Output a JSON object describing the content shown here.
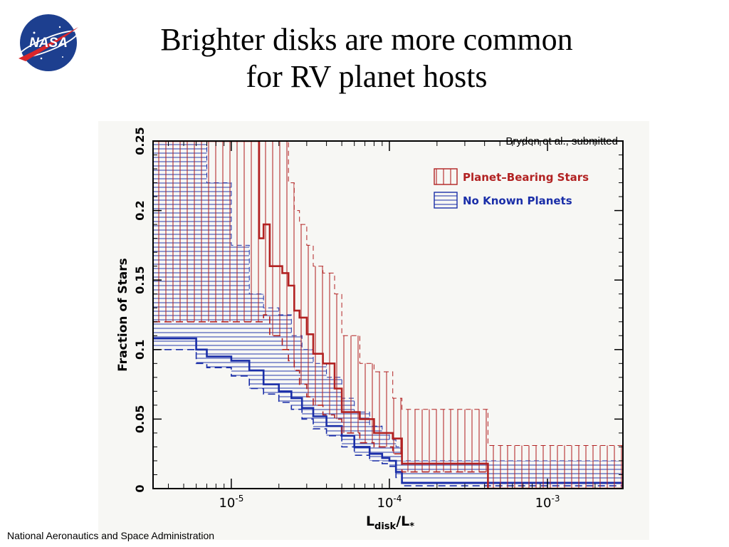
{
  "page": {
    "title_line1": "Brighter disks are more common",
    "title_line2": "for RV planet hosts",
    "footer": "National Aeronautics and Space Administration",
    "logo_text": "NASA"
  },
  "colors": {
    "planet": "#b22222",
    "noplanet": "#1a2ea8",
    "panel_bg": "#f7f7f4"
  },
  "chart_data": {
    "type": "line",
    "annotation": "Bryden et al., submitted",
    "ylabel": "Fraction of Stars",
    "xlabel_main": "L",
    "xlabel_sub1": "disk",
    "xlabel_sep": "/L",
    "xlabel_sub2": "*",
    "x_scale": "log",
    "xlim": [
      3.2e-06,
      0.003
    ],
    "ylim": [
      0,
      0.25
    ],
    "x_ticks": [
      {
        "value": 1e-05,
        "base": "10",
        "exp": "-5"
      },
      {
        "value": 0.0001,
        "base": "10",
        "exp": "-4"
      },
      {
        "value": 0.001,
        "base": "10",
        "exp": "-3"
      }
    ],
    "y_ticks": [
      {
        "value": 0,
        "label": "0"
      },
      {
        "value": 0.05,
        "label": "0.05"
      },
      {
        "value": 0.1,
        "label": "0.1"
      },
      {
        "value": 0.15,
        "label": "0.15"
      },
      {
        "value": 0.2,
        "label": "0.2"
      },
      {
        "value": 0.25,
        "label": "0.25"
      }
    ],
    "legend_position": "top-right",
    "series": [
      {
        "name": "Planet–Bearing Stars",
        "color_key": "planet",
        "hatch": "vertical",
        "x": [
          3.2e-06,
          1.5e-05,
          1.6e-05,
          1.75e-05,
          2.1e-05,
          2.3e-05,
          2.5e-05,
          2.7e-05,
          3e-05,
          3.3e-05,
          3.8e-05,
          4.5e-05,
          5e-05,
          6.5e-05,
          8e-05,
          0.000105,
          0.00012,
          0.00042,
          0.003
        ],
        "values": [
          0.25,
          0.18,
          0.19,
          0.16,
          0.155,
          0.146,
          0.128,
          0.123,
          0.111,
          0.097,
          0.09,
          0.072,
          0.055,
          0.05,
          0.04,
          0.036,
          0.018,
          0.0,
          0.0
        ],
        "upper": [
          0.25,
          0.25,
          0.25,
          0.25,
          0.25,
          0.22,
          0.2,
          0.19,
          0.175,
          0.16,
          0.155,
          0.14,
          0.11,
          0.09,
          0.084,
          0.065,
          0.057,
          0.031,
          0.031
        ],
        "lower": [
          0.12,
          0.12,
          0.125,
          0.11,
          0.1,
          0.092,
          0.085,
          0.075,
          0.066,
          0.06,
          0.053,
          0.05,
          0.04,
          0.033,
          0.03,
          0.025,
          0.012,
          0.0,
          0.0
        ]
      },
      {
        "name": "No Known Planets",
        "color_key": "noplanet",
        "hatch": "horizontal",
        "x": [
          3.2e-06,
          6e-06,
          7e-06,
          1e-05,
          1.3e-05,
          1.6e-05,
          2e-05,
          2.4e-05,
          2.8e-05,
          3.3e-05,
          4e-05,
          5e-05,
          6e-05,
          7.5e-05,
          9e-05,
          0.0001,
          0.00011,
          0.00012,
          0.003
        ],
        "values": [
          0.108,
          0.1,
          0.095,
          0.092,
          0.085,
          0.075,
          0.07,
          0.065,
          0.058,
          0.052,
          0.045,
          0.038,
          0.03,
          0.025,
          0.022,
          0.02,
          0.012,
          0.004,
          0.0
        ],
        "upper": [
          0.25,
          0.25,
          0.22,
          0.175,
          0.14,
          0.13,
          0.125,
          0.11,
          0.1,
          0.09,
          0.08,
          0.065,
          0.055,
          0.045,
          0.04,
          0.035,
          0.03,
          0.02,
          0.012
        ],
        "lower": [
          0.1,
          0.09,
          0.087,
          0.081,
          0.072,
          0.068,
          0.062,
          0.057,
          0.05,
          0.043,
          0.038,
          0.03,
          0.024,
          0.02,
          0.018,
          0.016,
          0.008,
          0.002,
          0.0
        ]
      }
    ]
  }
}
